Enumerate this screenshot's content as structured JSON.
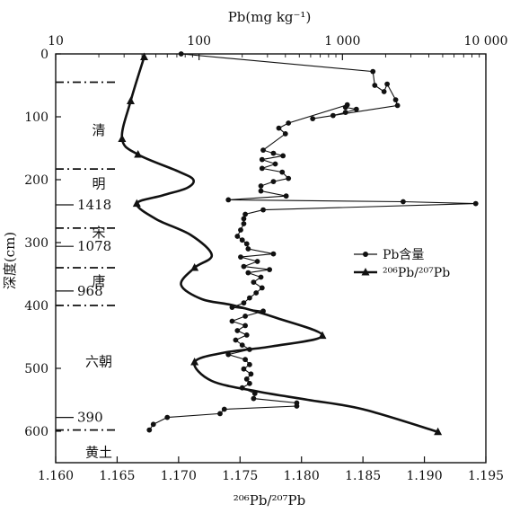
{
  "chart_data": {
    "type": "line",
    "top_axis": {
      "label": "Pb(mg kg⁻¹)",
      "scale": "log",
      "range": [
        10,
        10000
      ],
      "ticks": [
        10,
        100,
        1000,
        10000
      ],
      "tick_labels": [
        "10",
        "100",
        "1 000",
        "10 000"
      ]
    },
    "bottom_axis": {
      "label": "²⁰⁶Pb/²⁰⁷Pb",
      "range": [
        1.16,
        1.195
      ],
      "ticks": [
        1.16,
        1.165,
        1.17,
        1.175,
        1.18,
        1.185,
        1.19,
        1.195
      ],
      "tick_labels": [
        "1.160",
        "1.165",
        "1.170",
        "1.175",
        "1.180",
        "1.185",
        "1.190",
        "1.195"
      ]
    },
    "y_axis": {
      "label": "深度(cm)",
      "range": [
        0,
        650
      ],
      "inverted": true,
      "ticks": [
        0,
        100,
        200,
        300,
        400,
        500,
        600
      ],
      "tick_labels": [
        "0",
        "100",
        "200",
        "300",
        "400",
        "500",
        "600"
      ]
    },
    "series": [
      {
        "name": "Pb含量",
        "marker": "circle",
        "axis": "top",
        "points": [
          [
            75,
            0
          ],
          [
            1630,
            28
          ],
          [
            1680,
            50
          ],
          [
            1950,
            60
          ],
          [
            2050,
            48
          ],
          [
            2350,
            73
          ],
          [
            2420,
            82
          ],
          [
            620,
            103
          ],
          [
            860,
            98
          ],
          [
            1050,
            93
          ],
          [
            1250,
            88
          ],
          [
            1050,
            85
          ],
          [
            1080,
            81
          ],
          [
            420,
            110
          ],
          [
            360,
            118
          ],
          [
            400,
            127
          ],
          [
            280,
            153
          ],
          [
            330,
            158
          ],
          [
            385,
            162
          ],
          [
            275,
            168
          ],
          [
            340,
            175
          ],
          [
            275,
            182
          ],
          [
            380,
            188
          ],
          [
            420,
            198
          ],
          [
            330,
            203
          ],
          [
            270,
            210
          ],
          [
            270,
            218
          ],
          [
            405,
            226
          ],
          [
            160,
            232
          ],
          [
            2650,
            235
          ],
          [
            8500,
            238
          ],
          [
            280,
            248
          ],
          [
            210,
            255
          ],
          [
            205,
            262
          ],
          [
            205,
            270
          ],
          [
            195,
            280
          ],
          [
            185,
            290
          ],
          [
            200,
            296
          ],
          [
            215,
            302
          ],
          [
            220,
            310
          ],
          [
            330,
            318
          ],
          [
            195,
            323
          ],
          [
            255,
            330
          ],
          [
            205,
            338
          ],
          [
            310,
            343
          ],
          [
            220,
            348
          ],
          [
            270,
            355
          ],
          [
            240,
            363
          ],
          [
            275,
            372
          ],
          [
            250,
            380
          ],
          [
            225,
            388
          ],
          [
            205,
            396
          ],
          [
            170,
            403
          ],
          [
            280,
            409
          ],
          [
            210,
            417
          ],
          [
            170,
            425
          ],
          [
            210,
            432
          ],
          [
            185,
            440
          ],
          [
            215,
            447
          ],
          [
            180,
            455
          ],
          [
            200,
            463
          ],
          [
            225,
            470
          ],
          [
            160,
            478
          ],
          [
            210,
            486
          ],
          [
            225,
            494
          ],
          [
            205,
            501
          ],
          [
            230,
            509
          ],
          [
            215,
            517
          ],
          [
            225,
            524
          ],
          [
            200,
            531
          ],
          [
            245,
            540
          ],
          [
            240,
            548
          ],
          [
            480,
            555
          ],
          [
            480,
            560
          ],
          [
            150,
            565
          ],
          [
            140,
            572
          ],
          [
            60,
            578
          ],
          [
            48,
            589
          ],
          [
            45,
            598
          ]
        ]
      },
      {
        "name": "²⁰⁶Pb/²⁰⁷Pb",
        "marker": "triangle",
        "axis": "bottom",
        "points": [
          [
            1.1672,
            5
          ],
          [
            1.1661,
            75
          ],
          [
            1.1654,
            135
          ],
          [
            1.1667,
            160
          ],
          [
            1.17,
            187
          ],
          [
            1.1712,
            200
          ],
          [
            1.1707,
            213
          ],
          [
            1.1687,
            225
          ],
          [
            1.1666,
            238
          ],
          [
            1.1682,
            263
          ],
          [
            1.171,
            288
          ],
          [
            1.1727,
            320
          ],
          [
            1.1713,
            340
          ],
          [
            1.1702,
            367
          ],
          [
            1.1719,
            390
          ],
          [
            1.1745,
            400
          ],
          [
            1.178,
            420
          ],
          [
            1.1817,
            448
          ],
          [
            1.1776,
            465
          ],
          [
            1.1737,
            475
          ],
          [
            1.1713,
            490
          ],
          [
            1.1727,
            520
          ],
          [
            1.1765,
            537
          ],
          [
            1.1805,
            550
          ],
          [
            1.185,
            565
          ],
          [
            1.1911,
            601
          ]
        ]
      }
    ],
    "periods": [
      {
        "name": "清",
        "y": 120
      },
      {
        "name": "明",
        "y": 205
      },
      {
        "name": "宋",
        "y": 283
      },
      {
        "name": "唐",
        "y": 360
      },
      {
        "name": "六朝",
        "y": 488
      },
      {
        "name": "黄土",
        "y": 632
      }
    ],
    "year_marks": [
      {
        "year": "1418",
        "y": 240
      },
      {
        "year": "1078",
        "y": 306
      },
      {
        "year": "968",
        "y": 377
      },
      {
        "year": "390",
        "y": 578
      }
    ],
    "boundaries": [
      45,
      183,
      277,
      340,
      400,
      598
    ],
    "legend_position": "right-middle",
    "grid": false
  }
}
